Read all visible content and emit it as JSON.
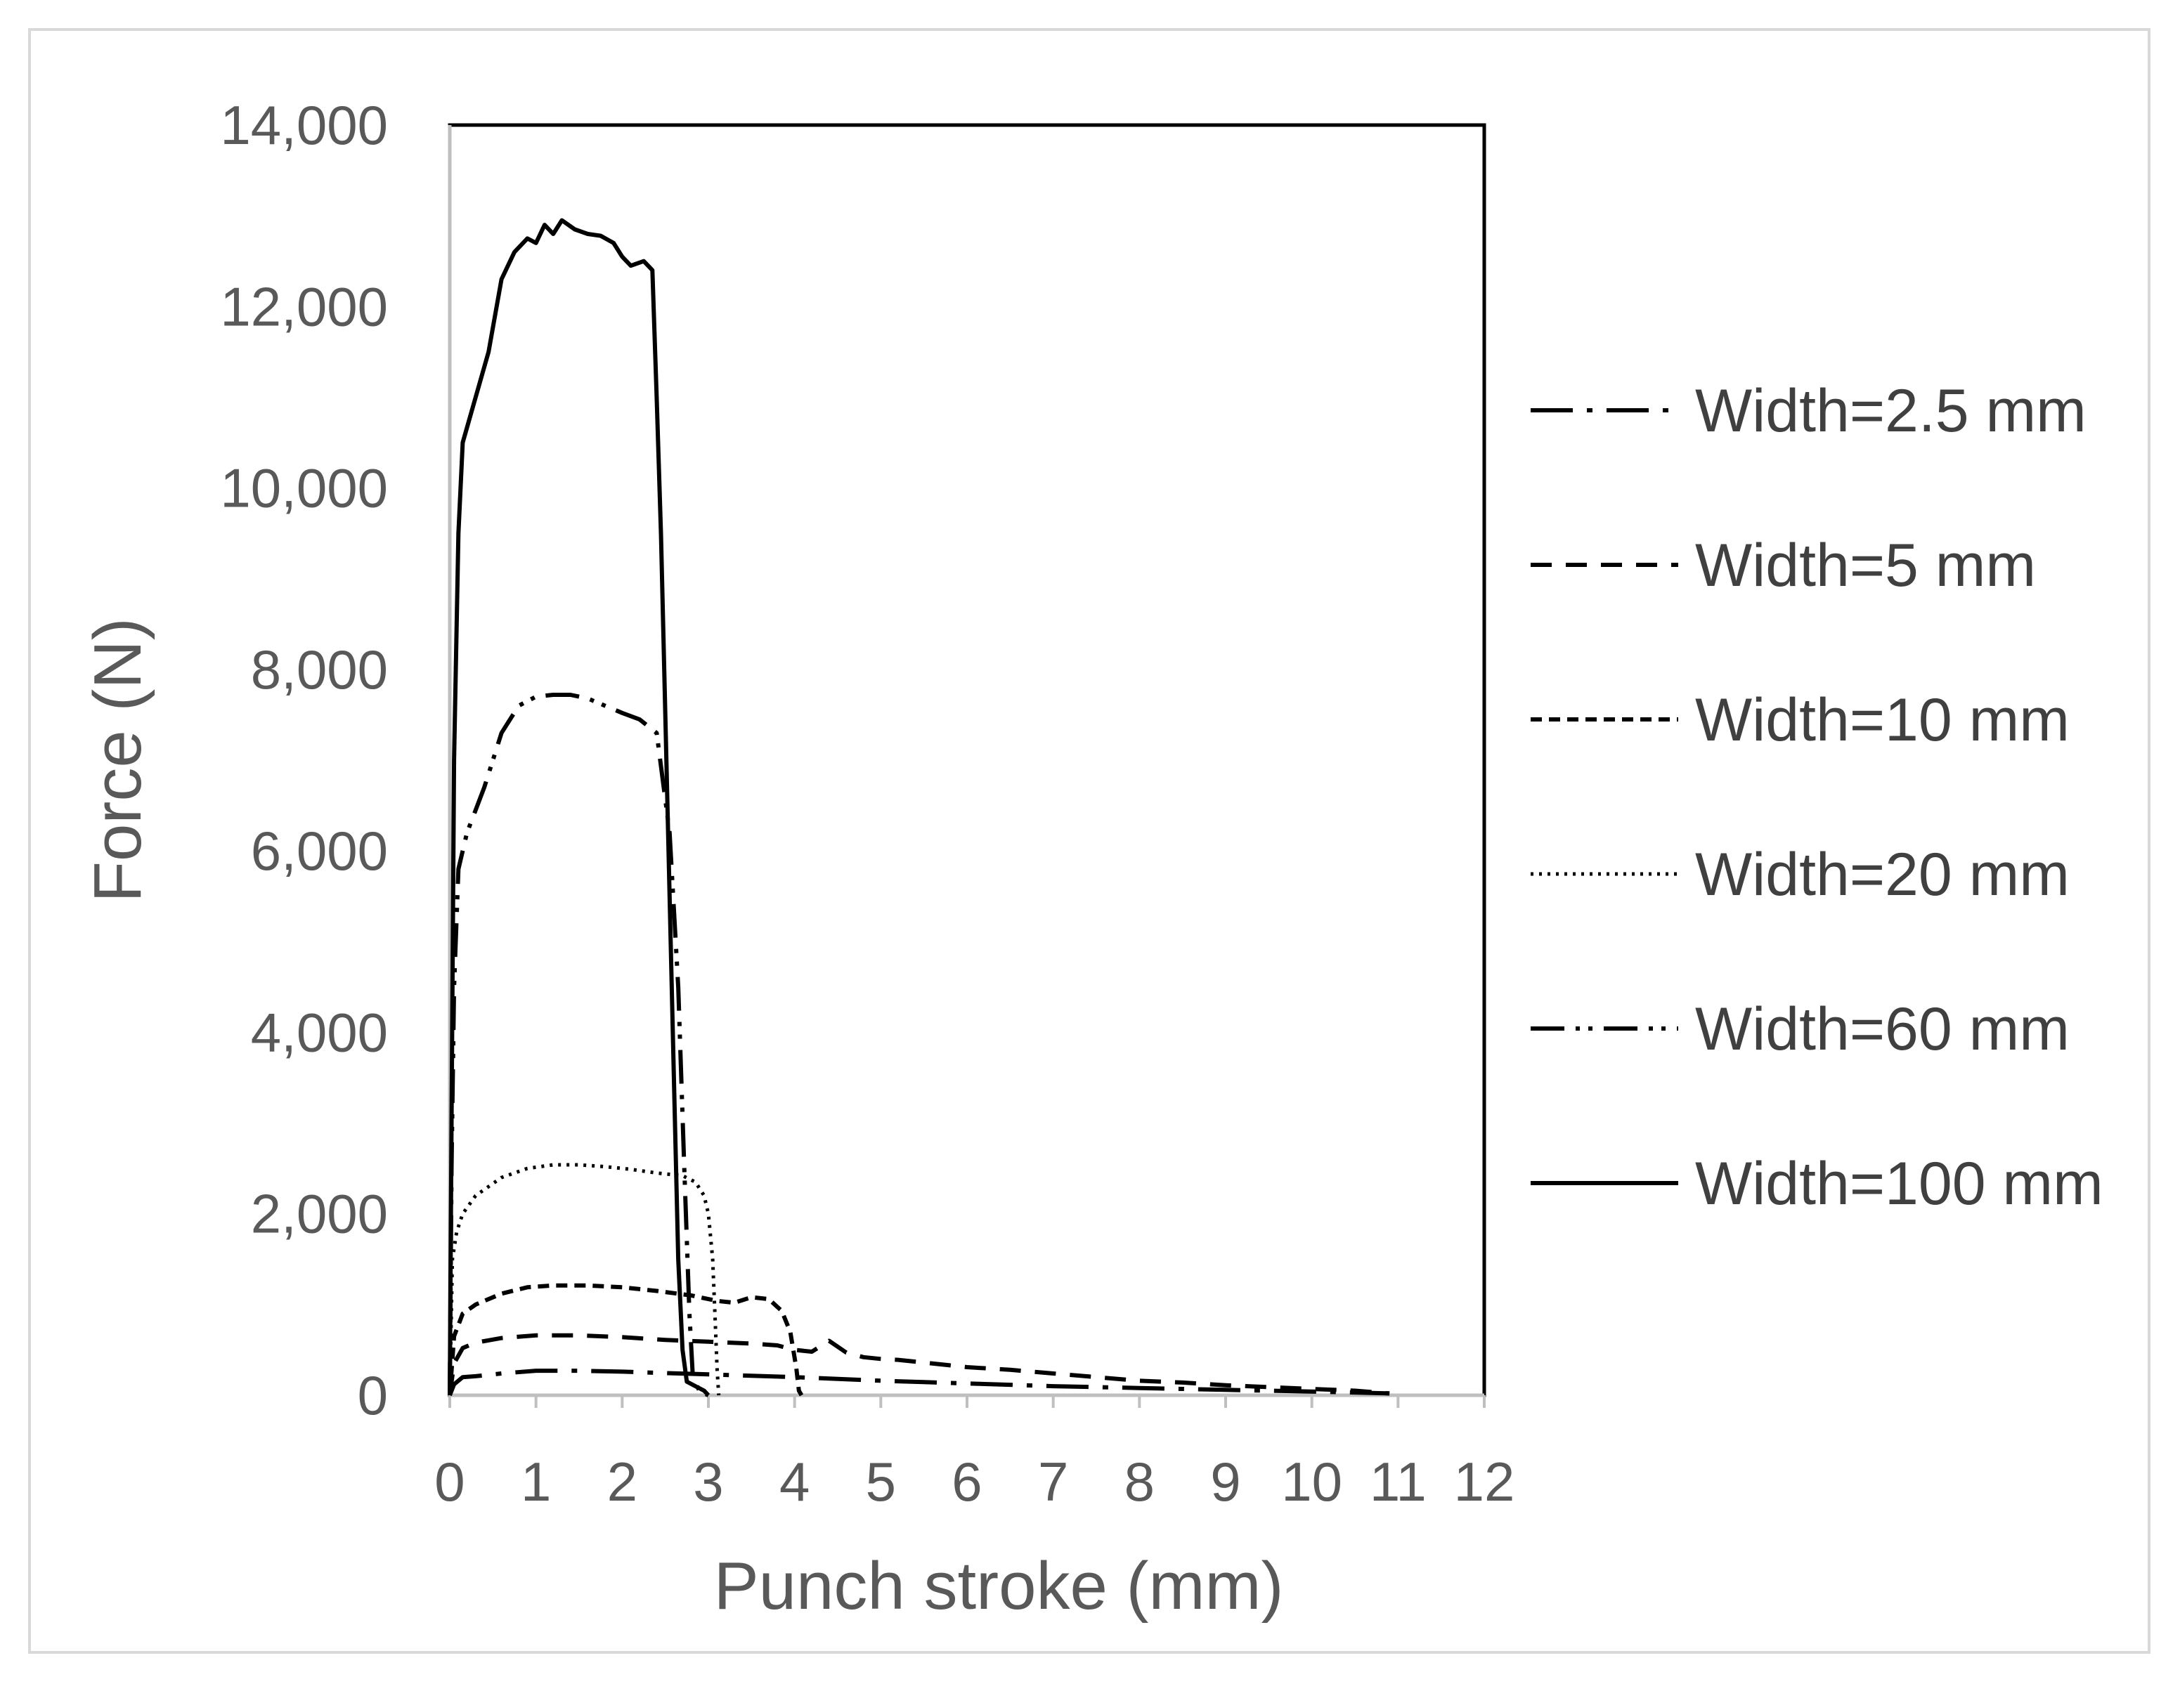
{
  "chart_data": {
    "type": "line",
    "title": "",
    "xlabel": "Punch stroke (mm)",
    "ylabel": "Force (N)",
    "xlim": [
      0,
      12
    ],
    "ylim": [
      0,
      14000
    ],
    "x_ticks": [
      "0",
      "1",
      "2",
      "3",
      "4",
      "5",
      "6",
      "7",
      "8",
      "9",
      "10",
      "11",
      "12"
    ],
    "y_ticks": [
      "0",
      "2,000",
      "4,000",
      "6,000",
      "8,000",
      "10,000",
      "12,000",
      "14,000"
    ],
    "grid": false,
    "legend_position": "right",
    "series": [
      {
        "name": "Width=2.5 mm",
        "dash": "long-dash-dot",
        "points": [
          [
            0,
            0
          ],
          [
            0.05,
            120
          ],
          [
            0.15,
            200
          ],
          [
            0.3,
            210
          ],
          [
            0.6,
            240
          ],
          [
            1.0,
            270
          ],
          [
            1.5,
            270
          ],
          [
            2.0,
            260
          ],
          [
            2.5,
            245
          ],
          [
            3.0,
            230
          ],
          [
            3.5,
            215
          ],
          [
            4.0,
            200
          ],
          [
            4.5,
            180
          ],
          [
            5.0,
            160
          ],
          [
            5.5,
            145
          ],
          [
            6.0,
            130
          ],
          [
            6.5,
            115
          ],
          [
            7.0,
            100
          ],
          [
            7.5,
            90
          ],
          [
            8.0,
            80
          ],
          [
            8.5,
            70
          ],
          [
            9.0,
            60
          ],
          [
            9.5,
            50
          ],
          [
            10.0,
            40
          ],
          [
            10.5,
            30
          ],
          [
            10.9,
            20
          ]
        ]
      },
      {
        "name": "Width=5 mm",
        "dash": "dash",
        "points": [
          [
            0,
            0
          ],
          [
            0.05,
            350
          ],
          [
            0.15,
            520
          ],
          [
            0.3,
            580
          ],
          [
            0.6,
            630
          ],
          [
            1.0,
            660
          ],
          [
            1.5,
            660
          ],
          [
            2.0,
            640
          ],
          [
            2.5,
            610
          ],
          [
            3.0,
            590
          ],
          [
            3.5,
            570
          ],
          [
            3.8,
            550
          ],
          [
            4.0,
            500
          ],
          [
            4.2,
            480
          ],
          [
            4.4,
            600
          ],
          [
            4.6,
            470
          ],
          [
            4.8,
            420
          ],
          [
            5.0,
            400
          ],
          [
            5.2,
            390
          ],
          [
            5.5,
            360
          ],
          [
            5.8,
            330
          ],
          [
            6.0,
            310
          ],
          [
            6.5,
            280
          ],
          [
            7.0,
            240
          ],
          [
            7.5,
            200
          ],
          [
            8.0,
            160
          ],
          [
            8.5,
            140
          ],
          [
            9.0,
            110
          ],
          [
            9.5,
            90
          ],
          [
            10.0,
            70
          ],
          [
            10.5,
            50
          ],
          [
            10.9,
            20
          ]
        ]
      },
      {
        "name": "Width=10 mm",
        "dash": "short-dash",
        "points": [
          [
            0,
            0
          ],
          [
            0.05,
            650
          ],
          [
            0.15,
            900
          ],
          [
            0.3,
            1000
          ],
          [
            0.6,
            1120
          ],
          [
            0.9,
            1190
          ],
          [
            1.2,
            1210
          ],
          [
            1.6,
            1210
          ],
          [
            2.0,
            1190
          ],
          [
            2.4,
            1150
          ],
          [
            2.8,
            1100
          ],
          [
            3.1,
            1040
          ],
          [
            3.3,
            1020
          ],
          [
            3.5,
            1080
          ],
          [
            3.7,
            1060
          ],
          [
            3.85,
            930
          ],
          [
            3.95,
            700
          ],
          [
            4.02,
            300
          ],
          [
            4.05,
            50
          ],
          [
            4.08,
            0
          ]
        ]
      },
      {
        "name": "Width=20 mm",
        "dash": "dot",
        "points": [
          [
            0,
            0
          ],
          [
            0.03,
            1500
          ],
          [
            0.08,
            1800
          ],
          [
            0.15,
            2000
          ],
          [
            0.3,
            2200
          ],
          [
            0.6,
            2400
          ],
          [
            0.9,
            2500
          ],
          [
            1.2,
            2540
          ],
          [
            1.5,
            2540
          ],
          [
            1.8,
            2520
          ],
          [
            2.1,
            2490
          ],
          [
            2.4,
            2450
          ],
          [
            2.7,
            2420
          ],
          [
            2.85,
            2350
          ],
          [
            2.95,
            2200
          ],
          [
            3.0,
            2000
          ],
          [
            3.05,
            1500
          ],
          [
            3.08,
            800
          ],
          [
            3.1,
            300
          ],
          [
            3.12,
            0
          ]
        ]
      },
      {
        "name": "Width=60 mm",
        "dash": "long-dash-dot-dot",
        "points": [
          [
            0,
            0
          ],
          [
            0.02,
            2500
          ],
          [
            0.05,
            4500
          ],
          [
            0.1,
            5800
          ],
          [
            0.2,
            6200
          ],
          [
            0.4,
            6700
          ],
          [
            0.6,
            7300
          ],
          [
            0.8,
            7600
          ],
          [
            1.0,
            7700
          ],
          [
            1.2,
            7720
          ],
          [
            1.4,
            7720
          ],
          [
            1.6,
            7680
          ],
          [
            1.8,
            7600
          ],
          [
            2.0,
            7520
          ],
          [
            2.2,
            7450
          ],
          [
            2.4,
            7300
          ],
          [
            2.55,
            6200
          ],
          [
            2.65,
            4500
          ],
          [
            2.72,
            2500
          ],
          [
            2.78,
            900
          ],
          [
            2.82,
            200
          ],
          [
            2.9,
            40
          ],
          [
            3.0,
            0
          ]
        ]
      },
      {
        "name": "Width=100 mm",
        "dash": "solid",
        "points": [
          [
            0,
            0
          ],
          [
            0.02,
            3000
          ],
          [
            0.05,
            7000
          ],
          [
            0.1,
            9500
          ],
          [
            0.15,
            10500
          ],
          [
            0.3,
            11000
          ],
          [
            0.45,
            11500
          ],
          [
            0.6,
            12300
          ],
          [
            0.75,
            12600
          ],
          [
            0.9,
            12750
          ],
          [
            1.0,
            12700
          ],
          [
            1.1,
            12900
          ],
          [
            1.2,
            12800
          ],
          [
            1.3,
            12950
          ],
          [
            1.45,
            12850
          ],
          [
            1.6,
            12800
          ],
          [
            1.75,
            12780
          ],
          [
            1.9,
            12700
          ],
          [
            2.0,
            12550
          ],
          [
            2.1,
            12450
          ],
          [
            2.25,
            12500
          ],
          [
            2.35,
            12400
          ],
          [
            2.4,
            11000
          ],
          [
            2.45,
            9500
          ],
          [
            2.5,
            7500
          ],
          [
            2.55,
            5500
          ],
          [
            2.6,
            3500
          ],
          [
            2.65,
            1500
          ],
          [
            2.7,
            500
          ],
          [
            2.75,
            150
          ],
          [
            2.85,
            100
          ],
          [
            2.95,
            50
          ],
          [
            3.0,
            0
          ]
        ]
      }
    ]
  }
}
